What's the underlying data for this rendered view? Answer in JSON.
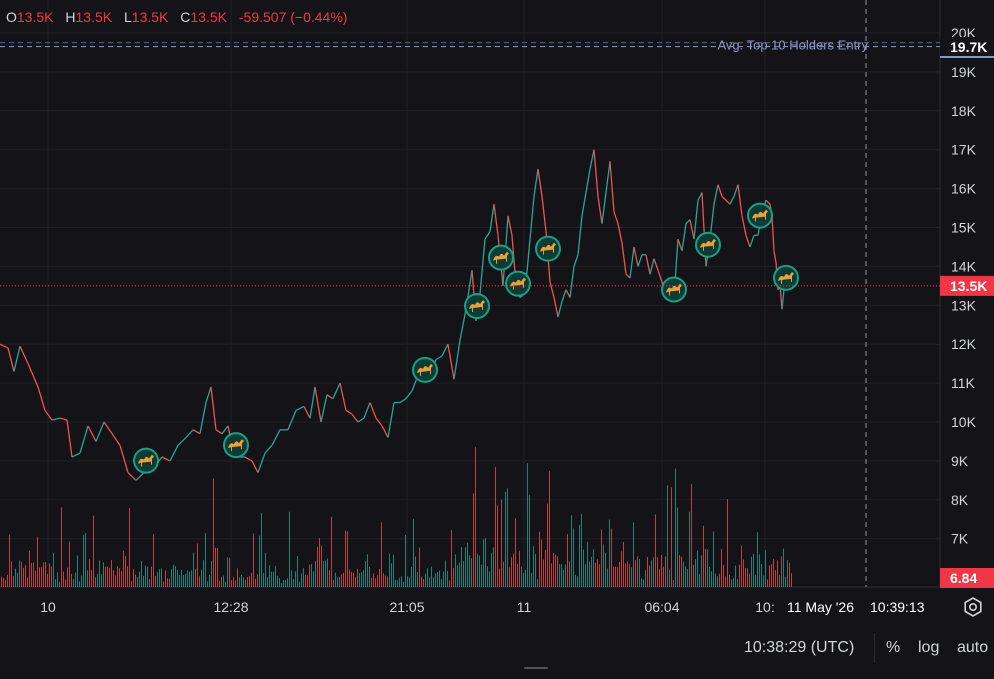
{
  "ohlc": {
    "o_label": "O",
    "o_value": "13.5K",
    "h_label": "H",
    "h_value": "13.5K",
    "l_label": "L",
    "l_value": "13.5K",
    "c_label": "C",
    "c_value": "13.5K",
    "change": "-59.507 (−0.44%)"
  },
  "chart_data": {
    "type": "line",
    "title": "",
    "xlabel": "",
    "ylabel": "",
    "x_tick_labels": [
      "10",
      "12:28",
      "21:05",
      "11",
      "06:04",
      "10:"
    ],
    "y_tick_labels": [
      "20K",
      "19K",
      "18K",
      "17K",
      "16K",
      "15K",
      "14K",
      "13K",
      "12K",
      "11K",
      "10K",
      "9K",
      "8K",
      "7K"
    ],
    "ylim": [
      6550,
      20350
    ],
    "grid": true,
    "price_series": [
      {
        "t": 0,
        "v": 12000
      },
      {
        "t": 8,
        "v": 11900
      },
      {
        "t": 14,
        "v": 11300
      },
      {
        "t": 20,
        "v": 11950
      },
      {
        "t": 28,
        "v": 11500
      },
      {
        "t": 38,
        "v": 10900
      },
      {
        "t": 45,
        "v": 10300
      },
      {
        "t": 52,
        "v": 10050
      },
      {
        "t": 60,
        "v": 10100
      },
      {
        "t": 67,
        "v": 10050
      },
      {
        "t": 72,
        "v": 9100
      },
      {
        "t": 80,
        "v": 9200
      },
      {
        "t": 88,
        "v": 9900
      },
      {
        "t": 96,
        "v": 9500
      },
      {
        "t": 104,
        "v": 10000
      },
      {
        "t": 112,
        "v": 9700
      },
      {
        "t": 120,
        "v": 9400
      },
      {
        "t": 128,
        "v": 8700
      },
      {
        "t": 136,
        "v": 8500
      },
      {
        "t": 144,
        "v": 8700
      },
      {
        "t": 150,
        "v": 9000
      },
      {
        "t": 156,
        "v": 8900
      },
      {
        "t": 162,
        "v": 9100
      },
      {
        "t": 170,
        "v": 9000
      },
      {
        "t": 178,
        "v": 9400
      },
      {
        "t": 186,
        "v": 9600
      },
      {
        "t": 193,
        "v": 9800
      },
      {
        "t": 200,
        "v": 9700
      },
      {
        "t": 206,
        "v": 10500
      },
      {
        "t": 211,
        "v": 10900
      },
      {
        "t": 216,
        "v": 9800
      },
      {
        "t": 222,
        "v": 9700
      },
      {
        "t": 228,
        "v": 9900
      },
      {
        "t": 232,
        "v": 9400
      },
      {
        "t": 238,
        "v": 9100
      },
      {
        "t": 245,
        "v": 9100
      },
      {
        "t": 252,
        "v": 9000
      },
      {
        "t": 258,
        "v": 8700
      },
      {
        "t": 265,
        "v": 9200
      },
      {
        "t": 272,
        "v": 9400
      },
      {
        "t": 280,
        "v": 9800
      },
      {
        "t": 288,
        "v": 9800
      },
      {
        "t": 296,
        "v": 10300
      },
      {
        "t": 304,
        "v": 10400
      },
      {
        "t": 310,
        "v": 10100
      },
      {
        "t": 315,
        "v": 10900
      },
      {
        "t": 321,
        "v": 10000
      },
      {
        "t": 327,
        "v": 10700
      },
      {
        "t": 333,
        "v": 10600
      },
      {
        "t": 340,
        "v": 11000
      },
      {
        "t": 346,
        "v": 10300
      },
      {
        "t": 352,
        "v": 10200
      },
      {
        "t": 358,
        "v": 10000
      },
      {
        "t": 364,
        "v": 10100
      },
      {
        "t": 370,
        "v": 10500
      },
      {
        "t": 376,
        "v": 10100
      },
      {
        "t": 382,
        "v": 9900
      },
      {
        "t": 388,
        "v": 9600
      },
      {
        "t": 394,
        "v": 10500
      },
      {
        "t": 400,
        "v": 10500
      },
      {
        "t": 406,
        "v": 10600
      },
      {
        "t": 412,
        "v": 10800
      },
      {
        "t": 418,
        "v": 11200
      },
      {
        "t": 424,
        "v": 11100
      },
      {
        "t": 430,
        "v": 11300
      },
      {
        "t": 436,
        "v": 11600
      },
      {
        "t": 442,
        "v": 11700
      },
      {
        "t": 448,
        "v": 12000
      },
      {
        "t": 454,
        "v": 11100
      },
      {
        "t": 460,
        "v": 12100
      },
      {
        "t": 466,
        "v": 12900
      },
      {
        "t": 472,
        "v": 13900
      },
      {
        "t": 476,
        "v": 12600
      },
      {
        "t": 480,
        "v": 13300
      },
      {
        "t": 485,
        "v": 14700
      },
      {
        "t": 490,
        "v": 14900
      },
      {
        "t": 494,
        "v": 15600
      },
      {
        "t": 498,
        "v": 14800
      },
      {
        "t": 503,
        "v": 13500
      },
      {
        "t": 508,
        "v": 15300
      },
      {
        "t": 512,
        "v": 14800
      },
      {
        "t": 516,
        "v": 13500
      },
      {
        "t": 520,
        "v": 13200
      },
      {
        "t": 525,
        "v": 13300
      },
      {
        "t": 530,
        "v": 14700
      },
      {
        "t": 534,
        "v": 15800
      },
      {
        "t": 538,
        "v": 16500
      },
      {
        "t": 542,
        "v": 15800
      },
      {
        "t": 546,
        "v": 14900
      },
      {
        "t": 550,
        "v": 13600
      },
      {
        "t": 554,
        "v": 13200
      },
      {
        "t": 558,
        "v": 12700
      },
      {
        "t": 562,
        "v": 13100
      },
      {
        "t": 566,
        "v": 13400
      },
      {
        "t": 570,
        "v": 13200
      },
      {
        "t": 574,
        "v": 14000
      },
      {
        "t": 578,
        "v": 14300
      },
      {
        "t": 582,
        "v": 15300
      },
      {
        "t": 586,
        "v": 15900
      },
      {
        "t": 590,
        "v": 16500
      },
      {
        "t": 594,
        "v": 17000
      },
      {
        "t": 598,
        "v": 15800
      },
      {
        "t": 602,
        "v": 15100
      },
      {
        "t": 606,
        "v": 15900
      },
      {
        "t": 610,
        "v": 16700
      },
      {
        "t": 614,
        "v": 15400
      },
      {
        "t": 618,
        "v": 15100
      },
      {
        "t": 622,
        "v": 14600
      },
      {
        "t": 626,
        "v": 13800
      },
      {
        "t": 630,
        "v": 13700
      },
      {
        "t": 634,
        "v": 14500
      },
      {
        "t": 638,
        "v": 14000
      },
      {
        "t": 642,
        "v": 14300
      },
      {
        "t": 646,
        "v": 14300
      },
      {
        "t": 650,
        "v": 13800
      },
      {
        "t": 654,
        "v": 14200
      },
      {
        "t": 658,
        "v": 13900
      },
      {
        "t": 662,
        "v": 13600
      },
      {
        "t": 666,
        "v": 13200
      },
      {
        "t": 670,
        "v": 13300
      },
      {
        "t": 674,
        "v": 13200
      },
      {
        "t": 678,
        "v": 14700
      },
      {
        "t": 682,
        "v": 14400
      },
      {
        "t": 686,
        "v": 15100
      },
      {
        "t": 690,
        "v": 15200
      },
      {
        "t": 694,
        "v": 14700
      },
      {
        "t": 698,
        "v": 15700
      },
      {
        "t": 702,
        "v": 15900
      },
      {
        "t": 706,
        "v": 14000
      },
      {
        "t": 710,
        "v": 14700
      },
      {
        "t": 714,
        "v": 15600
      },
      {
        "t": 718,
        "v": 16100
      },
      {
        "t": 722,
        "v": 15800
      },
      {
        "t": 726,
        "v": 15700
      },
      {
        "t": 730,
        "v": 15600
      },
      {
        "t": 734,
        "v": 15800
      },
      {
        "t": 738,
        "v": 16100
      },
      {
        "t": 742,
        "v": 15300
      },
      {
        "t": 746,
        "v": 14800
      },
      {
        "t": 750,
        "v": 14500
      },
      {
        "t": 754,
        "v": 14800
      },
      {
        "t": 758,
        "v": 14800
      },
      {
        "t": 762,
        "v": 15400
      },
      {
        "t": 766,
        "v": 15700
      },
      {
        "t": 770,
        "v": 15600
      },
      {
        "t": 772,
        "v": 15300
      },
      {
        "t": 774,
        "v": 14400
      },
      {
        "t": 776,
        "v": 14100
      },
      {
        "t": 778,
        "v": 13400
      },
      {
        "t": 780,
        "v": 13500
      },
      {
        "t": 782,
        "v": 12900
      },
      {
        "t": 784,
        "v": 13400
      },
      {
        "t": 786,
        "v": 13500
      },
      {
        "t": 788,
        "v": 13800
      },
      {
        "t": 790,
        "v": 13700
      },
      {
        "t": 792,
        "v": 13500
      }
    ],
    "volume_peak_value": 6.84,
    "markers_at_t": [
      146,
      236,
      425,
      477,
      501,
      518,
      548,
      674,
      708,
      760,
      786
    ],
    "marker_icon": "camel-icon",
    "reference_line": {
      "label": "Avg. Top 10 Holders Entry",
      "value": 19650
    },
    "last_price": {
      "label": "13.5K",
      "value": 13500
    },
    "price_tag_19k7": "19.7K",
    "volume_tag": "6.84",
    "crosshair_date": "11 May '26",
    "crosshair_time": "10:39:13",
    "colors": {
      "up": "#26a69a",
      "down": "#ef5350",
      "background": "#141418",
      "grid": "#1f2128",
      "axis_text": "#d1d4dc",
      "reference": "#8796c9",
      "price_tag": "#f23645",
      "marker_ring": "#17a088"
    }
  },
  "bottom": {
    "utc_time": "10:38:29 (UTC)",
    "percent_label": "%",
    "log_label": "log",
    "auto_label": "auto"
  }
}
